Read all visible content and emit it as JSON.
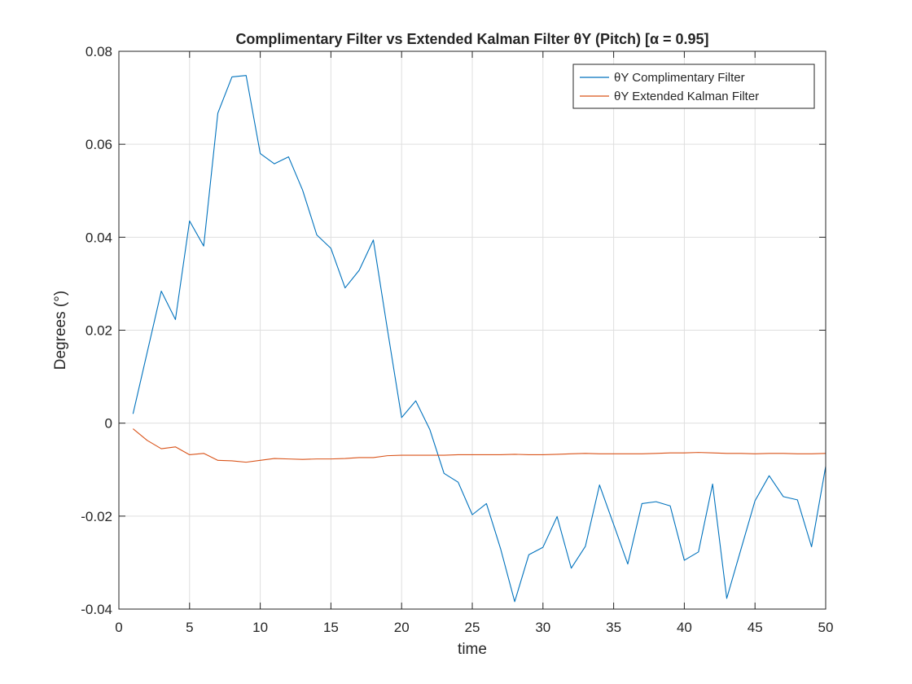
{
  "chart_data": {
    "type": "line",
    "title": "Complimentary Filter vs Extended Kalman Filter θY (Pitch) [α = 0.95]",
    "xlabel": "time",
    "ylabel": "Degrees (°)",
    "xlim": [
      0,
      50
    ],
    "ylim": [
      -0.04,
      0.08
    ],
    "xticks": [
      0,
      5,
      10,
      15,
      20,
      25,
      30,
      35,
      40,
      45,
      50
    ],
    "yticks": [
      -0.04,
      -0.02,
      0,
      0.02,
      0.04,
      0.06,
      0.08
    ],
    "xtick_labels": [
      "0",
      "5",
      "10",
      "15",
      "20",
      "25",
      "30",
      "35",
      "40",
      "45",
      "50"
    ],
    "ytick_labels": [
      "-0.04",
      "-0.02",
      "0",
      "0.02",
      "0.04",
      "0.06",
      "0.08"
    ],
    "grid": true,
    "legend_position": "top-right",
    "x": [
      1,
      2,
      3,
      4,
      5,
      6,
      7,
      8,
      9,
      10,
      11,
      12,
      13,
      14,
      15,
      16,
      17,
      18,
      19,
      20,
      21,
      22,
      23,
      24,
      25,
      26,
      27,
      28,
      29,
      30,
      31,
      32,
      33,
      34,
      35,
      36,
      37,
      38,
      39,
      40,
      41,
      42,
      43,
      44,
      45,
      46,
      47,
      48,
      49,
      50
    ],
    "series": [
      {
        "name": "θY Complimentary Filter",
        "color": "#0072BD",
        "values": [
          0.002,
          0.0152,
          0.0284,
          0.0223,
          0.0435,
          0.0381,
          0.0667,
          0.0745,
          0.0748,
          0.058,
          0.0558,
          0.0573,
          0.0501,
          0.0405,
          0.0376,
          0.0291,
          0.0329,
          0.0394,
          0.0201,
          0.0012,
          0.0048,
          -0.0014,
          -0.0108,
          -0.0127,
          -0.0197,
          -0.0173,
          -0.027,
          -0.0384,
          -0.0283,
          -0.0267,
          -0.0201,
          -0.0312,
          -0.0265,
          -0.0133,
          -0.0218,
          -0.0303,
          -0.0173,
          -0.0169,
          -0.0178,
          -0.0295,
          -0.0277,
          -0.0131,
          -0.0377,
          -0.0272,
          -0.0167,
          -0.0113,
          -0.0158,
          -0.0165,
          -0.0266,
          -0.0093
        ]
      },
      {
        "name": "θY Extended Kalman Filter",
        "color": "#D95319",
        "values": [
          -0.0012,
          -0.0037,
          -0.0055,
          -0.0051,
          -0.0068,
          -0.0065,
          -0.008,
          -0.0081,
          -0.0084,
          -0.008,
          -0.0076,
          -0.0077,
          -0.0078,
          -0.0077,
          -0.0077,
          -0.0076,
          -0.0074,
          -0.0074,
          -0.007,
          -0.0069,
          -0.0069,
          -0.0069,
          -0.0069,
          -0.0068,
          -0.0068,
          -0.0068,
          -0.0068,
          -0.0067,
          -0.0068,
          -0.0068,
          -0.0067,
          -0.0066,
          -0.0065,
          -0.0066,
          -0.0066,
          -0.0066,
          -0.0066,
          -0.0065,
          -0.0064,
          -0.0064,
          -0.0063,
          -0.0064,
          -0.0065,
          -0.0065,
          -0.0066,
          -0.0065,
          -0.0065,
          -0.0066,
          -0.0066,
          -0.0065
        ]
      }
    ]
  }
}
